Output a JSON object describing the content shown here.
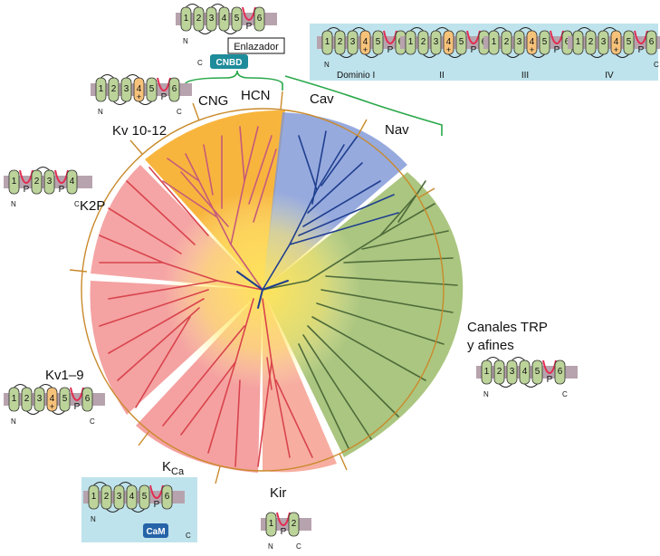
{
  "labels": {
    "cng": "CNG",
    "hcn": "HCN",
    "cav": "Cav",
    "nav": "Nav",
    "kv1012": "Kv 10-12",
    "k2p": "K2P",
    "kv19": "Kv1–9",
    "kca_main": "K",
    "kca_sub": "Ca",
    "kir": "Kir",
    "trp_line1": "Canales TRP",
    "trp_line2": "y afines"
  },
  "schematics": {
    "linker": "Enlazador",
    "cnbd": "CNBD",
    "cam": "CaM",
    "n": "N",
    "c": "C",
    "pore": "P",
    "plus": "+",
    "domains": [
      "Dominio I",
      "II",
      "III",
      "IV"
    ]
  },
  "colors": {
    "orange": "#f7a81b",
    "blue": "#4a6fc0",
    "green": "#8fb25a",
    "red": "#ee6b6b",
    "branch_red": "#d9444d",
    "branch_blue": "#1f3f8f",
    "branch_green": "#4e6b3a",
    "circle": "#c98a2b",
    "bracket": "#2aa84a",
    "segment": "#bcd39a",
    "segment_orange": "#f6c27a",
    "membrane": "#b7a3ad",
    "pore_loop": "#e32b4f",
    "cnbd": "#1e8c9a",
    "cam": "#2663a8",
    "box": "#bfe3ec"
  }
}
